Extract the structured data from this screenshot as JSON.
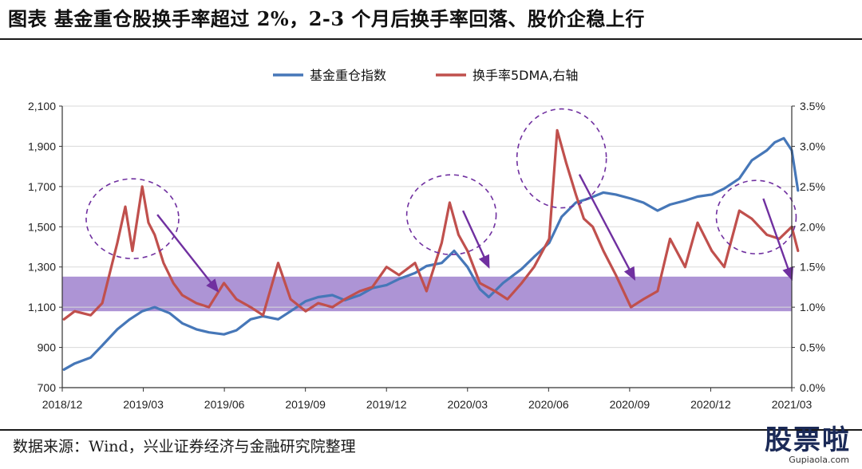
{
  "title": "图表  基金重仓股换手率超过 2%，2-3 个月后换手率回落、股价企稳上行",
  "source": "数据来源：Wind，兴业证券经济与金融研究院整理",
  "watermark": {
    "logo": "股票啦",
    "url": "Gupiaola.com"
  },
  "chart_data": {
    "type": "line",
    "title": "",
    "x_ticks": [
      "2018/12",
      "2019/03",
      "2019/06",
      "2019/09",
      "2019/12",
      "2020/03",
      "2020/06",
      "2020/09",
      "2020/12",
      "2021/03"
    ],
    "y_left": {
      "ticks": [
        "700",
        "900",
        "1,100",
        "1,300",
        "1,500",
        "1,700",
        "1,900",
        "2,100"
      ],
      "ylim": [
        700,
        2100
      ]
    },
    "y_right": {
      "ticks": [
        "0.0%",
        "0.5%",
        "1.0%",
        "1.5%",
        "2.0%",
        "2.5%",
        "3.0%",
        "3.5%"
      ],
      "ylim": [
        0,
        3.5
      ]
    },
    "legend": {
      "position": "top-center"
    },
    "colors": {
      "index": "#4677b8",
      "turnover": "#c0504d",
      "band": "#8e6bc5",
      "annotation": "#7030a0"
    },
    "band": {
      "axis": "right",
      "from": 0.95,
      "to": 1.38
    },
    "series": [
      {
        "name": "基金重仓指数",
        "axis": "left",
        "x": [
          "2018-12-03",
          "2018-12-15",
          "2019-01-02",
          "2019-01-15",
          "2019-02-01",
          "2019-02-15",
          "2019-03-01",
          "2019-03-15",
          "2019-04-01",
          "2019-04-15",
          "2019-05-01",
          "2019-05-15",
          "2019-06-01",
          "2019-06-15",
          "2019-07-01",
          "2019-07-15",
          "2019-08-01",
          "2019-08-15",
          "2019-09-01",
          "2019-09-15",
          "2019-10-01",
          "2019-10-15",
          "2019-11-01",
          "2019-11-15",
          "2019-12-01",
          "2019-12-15",
          "2020-01-02",
          "2020-01-15",
          "2020-02-01",
          "2020-02-15",
          "2020-03-01",
          "2020-03-15",
          "2020-03-25",
          "2020-04-10",
          "2020-05-01",
          "2020-05-15",
          "2020-06-01",
          "2020-06-15",
          "2020-07-01",
          "2020-07-15",
          "2020-08-01",
          "2020-08-15",
          "2020-09-01",
          "2020-09-15",
          "2020-10-01",
          "2020-10-15",
          "2020-11-01",
          "2020-11-15",
          "2020-12-01",
          "2020-12-15",
          "2021-01-01",
          "2021-01-15",
          "2021-02-01",
          "2021-02-10",
          "2021-02-20",
          "2021-03-01",
          "2021-03-08"
        ],
        "values": [
          790,
          820,
          850,
          910,
          990,
          1040,
          1080,
          1100,
          1070,
          1020,
          990,
          975,
          965,
          985,
          1040,
          1055,
          1040,
          1080,
          1130,
          1150,
          1160,
          1135,
          1160,
          1195,
          1210,
          1240,
          1270,
          1305,
          1320,
          1380,
          1300,
          1190,
          1150,
          1220,
          1290,
          1350,
          1420,
          1550,
          1620,
          1640,
          1670,
          1660,
          1640,
          1620,
          1580,
          1610,
          1630,
          1650,
          1660,
          1690,
          1740,
          1830,
          1880,
          1920,
          1940,
          1880,
          1680
        ]
      },
      {
        "name": "换手率5DMA,右轴",
        "axis": "right",
        "x": [
          "2018-12-03",
          "2018-12-15",
          "2019-01-02",
          "2019-01-15",
          "2019-02-01",
          "2019-02-10",
          "2019-02-18",
          "2019-03-01",
          "2019-03-08",
          "2019-03-15",
          "2019-03-25",
          "2019-04-05",
          "2019-04-15",
          "2019-05-01",
          "2019-05-15",
          "2019-06-01",
          "2019-06-15",
          "2019-07-01",
          "2019-07-15",
          "2019-08-01",
          "2019-08-15",
          "2019-09-01",
          "2019-09-15",
          "2019-10-01",
          "2019-10-15",
          "2019-11-01",
          "2019-11-15",
          "2019-12-01",
          "2019-12-15",
          "2020-01-02",
          "2020-01-15",
          "2020-02-01",
          "2020-02-10",
          "2020-02-20",
          "2020-03-01",
          "2020-03-15",
          "2020-04-01",
          "2020-04-15",
          "2020-05-01",
          "2020-05-15",
          "2020-06-01",
          "2020-06-10",
          "2020-06-20",
          "2020-07-01",
          "2020-07-10",
          "2020-07-20",
          "2020-08-01",
          "2020-08-15",
          "2020-09-01",
          "2020-09-15",
          "2020-10-01",
          "2020-10-15",
          "2020-11-01",
          "2020-11-15",
          "2020-12-01",
          "2020-12-15",
          "2021-01-01",
          "2021-01-15",
          "2021-02-01",
          "2021-02-15",
          "2021-03-01",
          "2021-03-08"
        ],
        "values": [
          0.85,
          0.95,
          0.9,
          1.05,
          1.8,
          2.25,
          1.7,
          2.5,
          2.05,
          1.9,
          1.55,
          1.3,
          1.15,
          1.05,
          1.0,
          1.3,
          1.1,
          1.0,
          0.9,
          1.55,
          1.1,
          0.95,
          1.05,
          1.0,
          1.1,
          1.2,
          1.25,
          1.5,
          1.4,
          1.55,
          1.2,
          1.8,
          2.3,
          1.9,
          1.7,
          1.3,
          1.2,
          1.1,
          1.3,
          1.5,
          1.85,
          3.2,
          2.8,
          2.4,
          2.1,
          2.0,
          1.7,
          1.4,
          1.0,
          1.1,
          1.2,
          1.85,
          1.5,
          2.05,
          1.7,
          1.5,
          2.2,
          2.1,
          1.9,
          1.85,
          2.0,
          1.7
        ]
      }
    ],
    "annotations": [
      {
        "type": "dashed-circle",
        "label": ""
      },
      {
        "type": "dashed-circle",
        "label": ""
      },
      {
        "type": "dashed-circle",
        "label": ""
      },
      {
        "type": "dashed-circle",
        "label": ""
      },
      {
        "type": "arrow",
        "label": ""
      },
      {
        "type": "arrow",
        "label": ""
      },
      {
        "type": "arrow",
        "label": ""
      },
      {
        "type": "arrow",
        "label": ""
      }
    ]
  }
}
